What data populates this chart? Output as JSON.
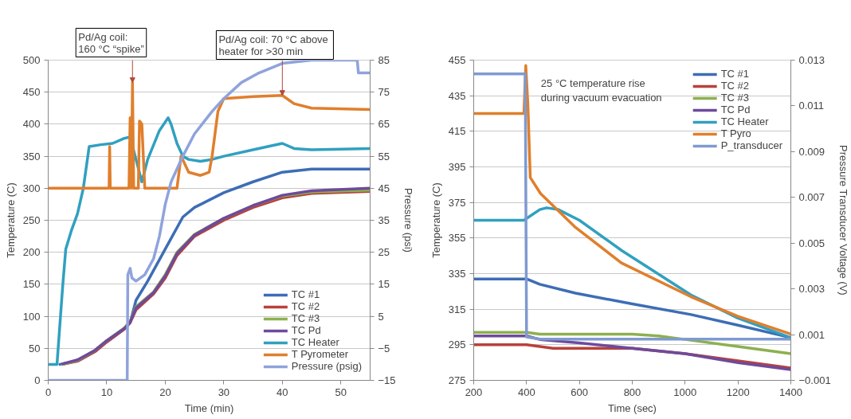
{
  "chart_data": [
    {
      "type": "line",
      "xlabel": "Time (min)",
      "ylabel": "Temperature (C)",
      "y2label": "Pressure (psi)",
      "xlim": [
        0,
        55
      ],
      "xticks": [
        0,
        10,
        20,
        30,
        40,
        50
      ],
      "ylim": [
        0,
        500
      ],
      "yticks": [
        0,
        50,
        100,
        150,
        200,
        250,
        300,
        350,
        400,
        450,
        500
      ],
      "y2lim": [
        -15,
        85
      ],
      "y2ticks": [
        {
          "value": -15,
          "label": "−15"
        },
        {
          "value": -5,
          "label": "−5"
        },
        5,
        15,
        25,
        35,
        45,
        55,
        65,
        75,
        85
      ],
      "grid": "y",
      "legend": "bottom right",
      "line_style": "solid",
      "annotations": [
        {
          "text": "Pd/Ag coil:\n160 °C “spike”",
          "x": 14.4,
          "y": 465
        },
        {
          "text": "Pd/Ag coil: 70 °C  above\nheater for >30 min",
          "x": 40,
          "y": 445
        }
      ],
      "series": [
        {
          "name": "TC #1",
          "color": "#3d6db5",
          "x": [
            2,
            5,
            8,
            10,
            13,
            14,
            15,
            17,
            20,
            23,
            25,
            30,
            35,
            40,
            45,
            55
          ],
          "values": [
            25,
            30,
            45,
            60,
            80,
            90,
            125,
            155,
            205,
            255,
            270,
            293,
            310,
            325,
            330,
            330
          ]
        },
        {
          "name": "TC #2",
          "color": "#b8413b",
          "x": [
            2.5,
            5,
            8,
            10,
            13,
            14,
            15,
            18,
            20,
            22,
            25,
            30,
            35,
            40,
            45,
            55
          ],
          "values": [
            25,
            30,
            45,
            60,
            80,
            90,
            110,
            135,
            160,
            195,
            225,
            250,
            270,
            285,
            292,
            295
          ]
        },
        {
          "name": "TC #3",
          "color": "#8db04f",
          "x": [
            2.5,
            5,
            8,
            10,
            13,
            14,
            15,
            18,
            20,
            22,
            25,
            30,
            35,
            40,
            45,
            55
          ],
          "values": [
            25,
            31,
            47,
            62,
            82,
            92,
            115,
            138,
            165,
            200,
            228,
            253,
            273,
            288,
            294,
            297
          ]
        },
        {
          "name": "TC Pd",
          "color": "#6e4a9c",
          "x": [
            2.5,
            5,
            8,
            10,
            13,
            14,
            15,
            18,
            20,
            22,
            25,
            30,
            35,
            40,
            45,
            55
          ],
          "values": [
            26,
            32,
            47,
            62,
            81,
            91,
            113,
            137,
            163,
            198,
            227,
            253,
            273,
            289,
            296,
            300
          ]
        },
        {
          "name": "TC Heater",
          "color": "#31a0c0",
          "x": [
            0,
            1.5,
            2.5,
            3,
            4,
            5,
            6,
            7,
            9,
            11,
            13,
            14,
            15,
            16,
            17,
            19,
            20.5,
            21,
            22,
            23,
            24,
            26,
            28,
            30,
            35,
            40,
            42,
            45,
            55
          ],
          "values": [
            25,
            25,
            150,
            205,
            235,
            260,
            300,
            365,
            368,
            370,
            378,
            380,
            345,
            310,
            345,
            390,
            410,
            400,
            370,
            350,
            345,
            342,
            345,
            350,
            360,
            370,
            362,
            360,
            362
          ]
        },
        {
          "name": "T Pyrometer",
          "color": "#e07f2c",
          "x": [
            0,
            10.4,
            10.5,
            10.6,
            13.8,
            14.0,
            14.2,
            14.4,
            14.6,
            15.4,
            15.6,
            16,
            16.5,
            22,
            22.7,
            24,
            26,
            27.5,
            28,
            29,
            30,
            35,
            40,
            42,
            45,
            55
          ],
          "values": [
            300,
            300,
            365,
            300,
            300,
            410,
            300,
            465,
            300,
            300,
            405,
            400,
            300,
            300,
            350,
            325,
            320,
            325,
            350,
            420,
            440,
            443,
            445,
            432,
            425,
            423
          ]
        },
        {
          "name": "Pressure (psig)",
          "color": "#8fa3dc",
          "axis": "y2",
          "x": [
            0,
            13.5,
            13.6,
            14,
            14.3,
            15,
            16.5,
            18,
            19,
            20,
            21,
            23,
            25,
            28,
            30,
            33,
            36,
            40,
            45,
            52.8,
            53,
            55
          ],
          "values": [
            -15,
            -15,
            18,
            20,
            17,
            16,
            18,
            23,
            30,
            40,
            47,
            55,
            62,
            69,
            73,
            78,
            81,
            84,
            85,
            85,
            81,
            81
          ]
        }
      ]
    },
    {
      "type": "line",
      "xlabel": "Time (sec)",
      "ylabel": "Temperature (C)",
      "y2label": "Pressure Transducer Voltage (V)",
      "xlim": [
        200,
        1400
      ],
      "xticks": [
        200,
        400,
        600,
        800,
        1000,
        1200,
        1400
      ],
      "ylim": [
        275,
        455
      ],
      "yticks": [
        275,
        295,
        315,
        335,
        355,
        375,
        395,
        415,
        435,
        455
      ],
      "y2lim": [
        -0.001,
        0.013
      ],
      "y2ticks": [
        {
          "value": -0.001,
          "label": "−0.001"
        },
        0.001,
        0.003,
        0.005,
        0.007,
        0.009,
        0.011,
        0.013
      ],
      "grid": "y",
      "legend": "top right",
      "line_style": "solid",
      "annotations": [
        {
          "text": "25 °C temperature rise\nduring vacuum evacuation",
          "x": 400,
          "y": 438
        }
      ],
      "series": [
        {
          "name": "TC #1",
          "color": "#3d6db5",
          "x": [
            200,
            400,
            450,
            585,
            800,
            1022,
            1200,
            1400
          ],
          "values": [
            332,
            332,
            329,
            324,
            318,
            312,
            306,
            299
          ]
        },
        {
          "name": "TC #2",
          "color": "#b8413b",
          "x": [
            200,
            400,
            500,
            800,
            1000,
            1200,
            1400
          ],
          "values": [
            295,
            295,
            293,
            293,
            290,
            286,
            282
          ]
        },
        {
          "name": "TC #3",
          "color": "#8db04f",
          "x": [
            200,
            400,
            450,
            600,
            800,
            900,
            1000,
            1200,
            1400
          ],
          "values": [
            302,
            302,
            301,
            301,
            301,
            300,
            298,
            294,
            290
          ]
        },
        {
          "name": "TC Pd",
          "color": "#6e4a9c",
          "x": [
            200,
            400,
            450,
            600,
            800,
            1000,
            1200,
            1400
          ],
          "values": [
            300,
            300,
            298,
            296,
            293,
            290,
            285,
            281
          ]
        },
        {
          "name": "TC Heater",
          "color": "#31a0c0",
          "x": [
            200,
            390,
            410,
            450,
            476,
            520,
            600,
            760,
            1022,
            1200,
            1400
          ],
          "values": [
            365,
            365,
            367,
            371,
            372,
            371,
            365,
            348,
            323,
            310,
            299
          ]
        },
        {
          "name": "T Pyro",
          "color": "#e07f2c",
          "x": [
            200,
            390,
            397,
            405,
            414,
            453,
            585,
            759,
            1022,
            1200,
            1400
          ],
          "values": [
            425,
            425,
            452,
            430,
            389,
            380,
            361,
            341,
            322,
            311,
            301
          ]
        },
        {
          "name": "P_transducer",
          "color": "#7f9ad0",
          "axis": "y2",
          "x": [
            200,
            395,
            400,
            450,
            1400
          ],
          "values": [
            0.0124,
            0.0124,
            0.0009,
            0.0008,
            0.0008
          ]
        }
      ]
    }
  ]
}
